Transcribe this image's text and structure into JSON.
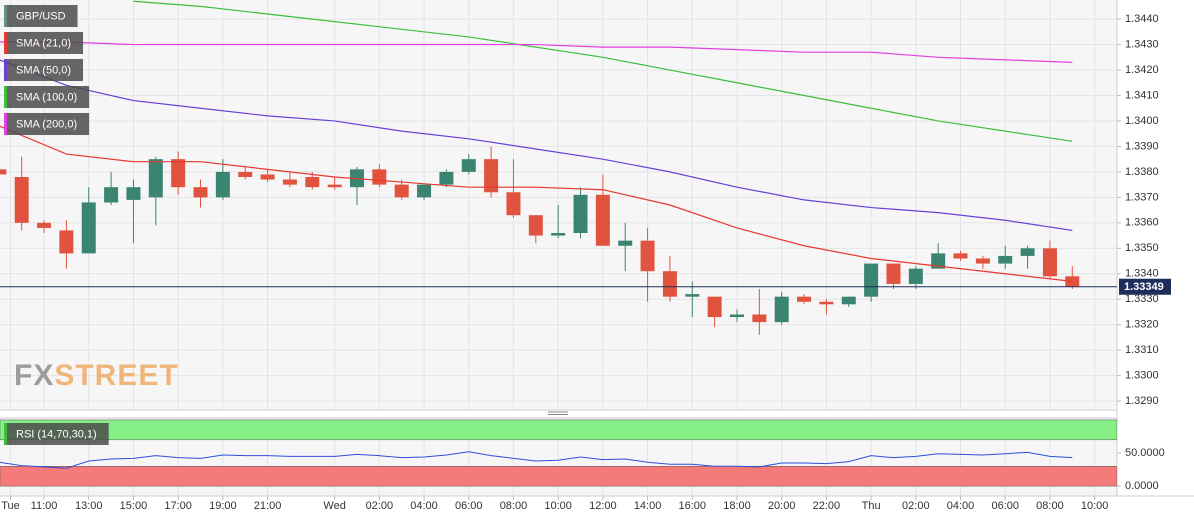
{
  "chart_data": [
    {
      "type": "candlestick",
      "legend_label": "GBP/USD",
      "up_color": "#3a8471",
      "down_color": "#e2533f",
      "x": [
        9,
        10,
        11,
        12,
        13,
        14,
        15,
        16,
        17,
        18,
        19,
        20,
        21,
        22,
        23,
        24,
        25,
        26,
        27,
        28,
        29,
        30,
        31,
        32,
        33,
        34,
        35,
        36,
        37,
        38,
        39,
        40,
        41,
        42,
        43,
        44,
        45,
        46,
        47,
        48,
        49,
        50,
        51,
        52,
        53,
        54,
        55,
        56,
        57
      ],
      "open": [
        1.3381,
        1.3378,
        1.336,
        1.3357,
        1.3348,
        1.3368,
        1.3369,
        1.337,
        1.3385,
        1.3374,
        1.337,
        1.338,
        1.3379,
        1.3377,
        1.3378,
        1.3375,
        1.3374,
        1.3381,
        1.3375,
        1.337,
        1.3375,
        1.338,
        1.3385,
        1.3372,
        1.3363,
        1.3355,
        1.3356,
        1.3371,
        1.3351,
        1.3353,
        1.3341,
        1.3331,
        1.3331,
        1.3323,
        1.3324,
        1.3321,
        1.3331,
        1.3329,
        1.3328,
        1.3331,
        1.3344,
        1.3336,
        1.3342,
        1.3348,
        1.3346,
        1.3344,
        1.3347,
        1.335,
        1.3339
      ],
      "high": [
        1.3392,
        1.3386,
        1.3361,
        1.3361,
        1.3374,
        1.338,
        1.3377,
        1.3386,
        1.3388,
        1.3377,
        1.3385,
        1.3382,
        1.3381,
        1.338,
        1.338,
        1.3378,
        1.3382,
        1.3383,
        1.3377,
        1.3375,
        1.3381,
        1.3387,
        1.339,
        1.3385,
        1.3363,
        1.3367,
        1.3374,
        1.3379,
        1.336,
        1.3358,
        1.3347,
        1.3337,
        1.3331,
        1.3326,
        1.3334,
        1.3333,
        1.3332,
        1.333,
        1.3331,
        1.3344,
        1.3344,
        1.3343,
        1.3352,
        1.3349,
        1.3347,
        1.3351,
        1.3351,
        1.3353,
        1.3343
      ],
      "low": [
        1.3376,
        1.3357,
        1.3356,
        1.3342,
        1.3348,
        1.3367,
        1.3352,
        1.3359,
        1.3371,
        1.3366,
        1.3369,
        1.3377,
        1.3376,
        1.3374,
        1.3373,
        1.3373,
        1.3367,
        1.3374,
        1.3369,
        1.3369,
        1.3374,
        1.3379,
        1.337,
        1.3362,
        1.3352,
        1.3354,
        1.3354,
        1.3351,
        1.3341,
        1.3329,
        1.3329,
        1.3323,
        1.3319,
        1.3321,
        1.3316,
        1.332,
        1.3328,
        1.3324,
        1.3327,
        1.3329,
        1.3334,
        1.3334,
        1.3342,
        1.3345,
        1.3342,
        1.3342,
        1.3342,
        1.3338,
        1.3334
      ],
      "close": [
        1.3379,
        1.336,
        1.3358,
        1.3348,
        1.3368,
        1.3374,
        1.3374,
        1.3385,
        1.3374,
        1.337,
        1.338,
        1.3378,
        1.3377,
        1.3375,
        1.3374,
        1.3374,
        1.3381,
        1.3375,
        1.337,
        1.3375,
        1.338,
        1.3385,
        1.3372,
        1.3363,
        1.3355,
        1.3356,
        1.3371,
        1.3351,
        1.3353,
        1.3341,
        1.3331,
        1.3332,
        1.3323,
        1.3324,
        1.3321,
        1.3331,
        1.3329,
        1.3328,
        1.3331,
        1.3344,
        1.3336,
        1.3342,
        1.3348,
        1.3346,
        1.3344,
        1.3347,
        1.335,
        1.3339,
        1.33349
      ],
      "last_price": 1.33349,
      "last_price_color": "#1f2d5c",
      "overlays": [
        {
          "name": "SMA (21,0)",
          "color": "#e8392f",
          "x": [
            9,
            12,
            15,
            18,
            21,
            24,
            27,
            30,
            33,
            36,
            39,
            42,
            45,
            48,
            51,
            54,
            57
          ],
          "values": [
            1.3398,
            1.3387,
            1.3384,
            1.3384,
            1.3381,
            1.3378,
            1.3376,
            1.3374,
            1.3374,
            1.3373,
            1.3367,
            1.3358,
            1.3351,
            1.3346,
            1.3343,
            1.334,
            1.3337
          ]
        },
        {
          "name": "SMA (50,0)",
          "color": "#6a3fd6",
          "x": [
            9,
            12,
            15,
            18,
            21,
            24,
            27,
            30,
            33,
            36,
            39,
            42,
            45,
            48,
            51,
            54,
            57
          ],
          "values": [
            1.3424,
            1.3414,
            1.3408,
            1.3405,
            1.3402,
            1.34,
            1.3396,
            1.3393,
            1.3389,
            1.3385,
            1.338,
            1.3374,
            1.3369,
            1.3366,
            1.3364,
            1.3361,
            1.3357
          ]
        },
        {
          "name": "SMA (100,0)",
          "color": "#3cbf3c",
          "x": [
            9,
            12,
            15,
            18,
            21,
            24,
            27,
            30,
            33,
            36,
            39,
            42,
            45,
            48,
            51,
            54,
            57
          ],
          "values": [
            null,
            null,
            1.3447,
            1.3445,
            1.3442,
            1.3439,
            1.3436,
            1.3433,
            1.3429,
            1.3425,
            1.342,
            1.3415,
            1.341,
            1.3405,
            1.34,
            1.3396,
            1.3392
          ]
        },
        {
          "name": "SMA (200,0)",
          "color": "#e040e0",
          "x": [
            9,
            12,
            15,
            18,
            21,
            24,
            27,
            30,
            33,
            36,
            39,
            42,
            45,
            48,
            51,
            54,
            57
          ],
          "values": [
            1.3431,
            1.3431,
            1.343,
            1.343,
            1.343,
            1.343,
            1.343,
            1.343,
            1.343,
            1.3429,
            1.3429,
            1.3428,
            1.3427,
            1.3427,
            1.3425,
            1.3424,
            1.3423
          ]
        }
      ],
      "watermark": [
        "FX",
        "STREET"
      ],
      "xlim": [
        9.03,
        59.0
      ],
      "xticks": [
        {
          "value": 9.5,
          "label": "Tue"
        },
        {
          "value": 11,
          "label": "11:00"
        },
        {
          "value": 13,
          "label": "13:00"
        },
        {
          "value": 15,
          "label": "15:00"
        },
        {
          "value": 17,
          "label": "17:00"
        },
        {
          "value": 19,
          "label": "19:00"
        },
        {
          "value": 21,
          "label": "21:00"
        },
        {
          "value": 24,
          "label": "Wed"
        },
        {
          "value": 26,
          "label": "02:00"
        },
        {
          "value": 28,
          "label": "04:00"
        },
        {
          "value": 30,
          "label": "06:00"
        },
        {
          "value": 32,
          "label": "08:00"
        },
        {
          "value": 34,
          "label": "10:00"
        },
        {
          "value": 36,
          "label": "12:00"
        },
        {
          "value": 38,
          "label": "14:00"
        },
        {
          "value": 40,
          "label": "16:00"
        },
        {
          "value": 42,
          "label": "18:00"
        },
        {
          "value": 44,
          "label": "20:00"
        },
        {
          "value": 46,
          "label": "22:00"
        },
        {
          "value": 48,
          "label": "Thu"
        },
        {
          "value": 50,
          "label": "02:00"
        },
        {
          "value": 52,
          "label": "04:00"
        },
        {
          "value": 54,
          "label": "06:00"
        },
        {
          "value": 56,
          "label": "08:00"
        },
        {
          "value": 58,
          "label": "10:00"
        }
      ],
      "ylim": [
        1.32865,
        1.34475
      ],
      "yticks": [
        {
          "value": 1.329,
          "label": "1.3290"
        },
        {
          "value": 1.33,
          "label": "1.3300"
        },
        {
          "value": 1.331,
          "label": "1.3310"
        },
        {
          "value": 1.332,
          "label": "1.3320"
        },
        {
          "value": 1.333,
          "label": "1.3330"
        },
        {
          "value": 1.334,
          "label": "1.3340"
        },
        {
          "value": 1.335,
          "label": "1.3350"
        },
        {
          "value": 1.336,
          "label": "1.3360"
        },
        {
          "value": 1.337,
          "label": "1.3370"
        },
        {
          "value": 1.338,
          "label": "1.3380"
        },
        {
          "value": 1.339,
          "label": "1.3390"
        },
        {
          "value": 1.34,
          "label": "1.3400"
        },
        {
          "value": 1.341,
          "label": "1.3410"
        },
        {
          "value": 1.342,
          "label": "1.3420"
        },
        {
          "value": 1.343,
          "label": "1.3430"
        },
        {
          "value": 1.344,
          "label": "1.3440"
        }
      ],
      "grid": true
    },
    {
      "type": "line",
      "name": "RSI (14,70,30,1)",
      "color": "#2f4fd8",
      "legend_color": "#3cbf3c",
      "x": [
        9,
        10,
        11,
        12,
        13,
        14,
        15,
        16,
        17,
        18,
        19,
        20,
        21,
        22,
        23,
        24,
        25,
        26,
        27,
        28,
        29,
        30,
        31,
        32,
        33,
        34,
        35,
        36,
        37,
        38,
        39,
        40,
        41,
        42,
        43,
        44,
        45,
        46,
        47,
        48,
        49,
        50,
        51,
        52,
        53,
        54,
        55,
        56,
        57
      ],
      "values": [
        36,
        31,
        29,
        27,
        38,
        41,
        42,
        46,
        43,
        42,
        47,
        46,
        46,
        45,
        45,
        45,
        48,
        46,
        43,
        44,
        47,
        52,
        46,
        42,
        38,
        39,
        44,
        40,
        41,
        36,
        33,
        33,
        30,
        30,
        29,
        35,
        35,
        34,
        37,
        46,
        43,
        45,
        49,
        48,
        47,
        49,
        51,
        45,
        43
      ],
      "bands": [
        {
          "from": 70,
          "to": 100,
          "color": "#86f086"
        },
        {
          "from": 0,
          "to": 30,
          "color": "#f57a7a"
        }
      ],
      "ylim": [
        -15,
        103
      ],
      "yticks": [
        {
          "value": 50,
          "label": "50.0000"
        },
        {
          "value": 0,
          "label": "0.0000"
        }
      ]
    }
  ]
}
